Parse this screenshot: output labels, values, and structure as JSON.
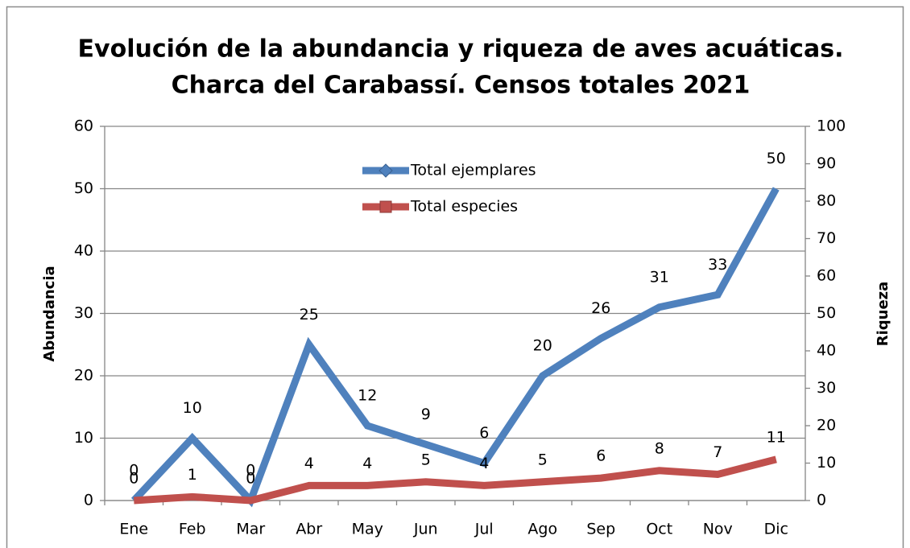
{
  "chart_data": {
    "type": "line",
    "title": [
      "Evolución de la abundancia y riqueza de aves acuáticas.",
      "Charca del Carabassí. Censos totales 2021"
    ],
    "ylabel": "Abundancia",
    "y2label": "Riqueza",
    "categories": [
      "Ene",
      "Feb",
      "Mar",
      "Abr",
      "May",
      "Jun",
      "Jul",
      "Ago",
      "Sep",
      "Oct",
      "Nov",
      "Dic"
    ],
    "series": [
      {
        "name": "Total ejemplares",
        "color": "#4f81bd",
        "axis": "y",
        "values": [
          0,
          10,
          0,
          25,
          12,
          9,
          6,
          20,
          26,
          31,
          33,
          50
        ]
      },
      {
        "name": "Total especies",
        "color": "#c0504d",
        "axis": "y2",
        "values": [
          0,
          1,
          0,
          4,
          4,
          5,
          4,
          5,
          6,
          8,
          7,
          11
        ]
      }
    ],
    "ylim": [
      0,
      60
    ],
    "yticks": [
      0,
      10,
      20,
      30,
      40,
      50,
      60
    ],
    "y2lim": [
      0,
      100
    ],
    "y2ticks": [
      0,
      10,
      20,
      30,
      40,
      50,
      60,
      70,
      80,
      90,
      100
    ],
    "grid": true,
    "legend": "upper-center",
    "data_labels": true
  }
}
